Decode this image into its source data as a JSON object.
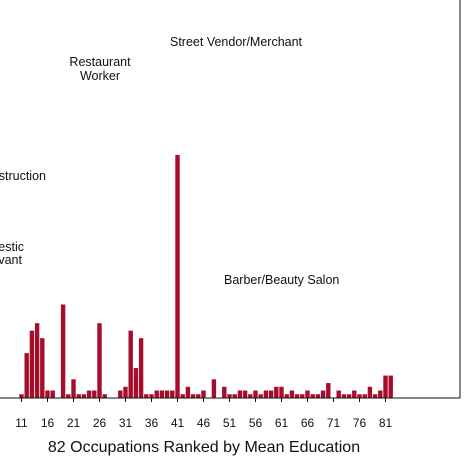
{
  "chart_data": {
    "type": "bar",
    "stacked": true,
    "title": "",
    "xlabel": "82 Occupations Ranked by Mean Education",
    "ylabel": "",
    "xticks": [
      11,
      16,
      21,
      26,
      31,
      36,
      41,
      46,
      51,
      56,
      61,
      66,
      71,
      76,
      81
    ],
    "grid": false,
    "legend": "none",
    "colors": {
      "crimson": "#a50d2a",
      "pink": "#e8638e",
      "dark": "#252326"
    },
    "x": [
      9,
      10,
      11,
      12,
      13,
      14,
      15,
      16,
      17,
      18,
      19,
      20,
      21,
      22,
      23,
      24,
      25,
      26,
      27,
      28,
      29,
      30,
      31,
      32,
      33,
      34,
      35,
      36,
      37,
      38,
      39,
      40,
      41,
      42,
      43,
      44,
      45,
      46,
      47,
      48,
      49,
      50,
      51,
      52,
      53,
      54,
      55,
      56,
      57,
      58,
      59,
      60,
      61,
      62,
      63,
      64,
      65,
      66,
      67,
      68,
      69,
      70,
      71,
      72,
      73,
      74,
      75,
      76,
      77,
      78,
      79,
      80,
      81,
      82
    ],
    "series": [
      {
        "color_key": "crimson",
        "values": [
          0,
          0,
          1,
          12,
          18,
          20,
          16,
          2,
          2,
          0,
          25,
          1,
          5,
          1,
          1,
          2,
          2,
          20,
          1,
          0,
          0,
          2,
          3,
          18,
          8,
          16,
          1,
          1,
          2,
          2,
          2,
          2,
          65,
          1,
          3,
          1,
          1,
          2,
          0,
          5,
          0,
          3,
          1,
          1,
          2,
          2,
          1,
          2,
          1,
          2,
          2,
          3,
          3,
          1,
          2,
          1,
          1,
          2,
          1,
          1,
          2,
          4,
          0,
          2,
          1,
          1,
          2,
          1,
          1,
          3,
          1,
          2,
          6,
          6
        ]
      },
      {
        "color_key": "pink",
        "values": [
          0,
          0,
          0,
          0,
          0,
          0,
          0,
          0,
          0,
          0,
          0,
          0,
          0,
          0,
          0,
          0,
          0,
          0,
          0,
          0,
          0,
          0,
          0,
          0,
          0,
          0,
          0,
          0,
          0,
          0,
          0,
          0,
          0,
          0,
          0,
          0,
          0,
          0,
          0,
          0,
          0,
          0,
          0,
          0,
          0,
          0,
          0,
          0,
          0,
          0,
          0,
          0,
          0,
          0,
          0,
          0,
          0,
          0,
          0,
          0,
          0,
          0,
          0,
          0,
          0,
          0,
          0,
          0,
          0,
          0,
          0,
          0,
          0,
          0
        ]
      },
      {
        "color_key": "dark",
        "values": [
          0,
          0,
          0,
          0,
          0,
          0,
          0,
          0,
          0,
          0,
          0,
          0,
          0,
          0,
          0,
          0,
          0,
          0,
          0,
          0,
          0,
          0,
          0,
          0,
          0,
          0,
          0,
          0,
          0,
          0,
          0,
          0,
          0,
          0,
          0,
          0,
          0,
          0,
          0,
          0,
          0,
          0,
          0,
          0,
          0,
          0,
          0,
          0,
          0,
          0,
          0,
          0,
          0,
          0,
          0,
          0,
          0,
          0,
          0,
          0,
          0,
          0,
          0,
          0,
          0,
          0,
          0,
          0,
          0,
          0,
          0,
          0,
          0,
          0
        ]
      }
    ],
    "annotations": [
      {
        "text": "Street Vendor/Merchant",
        "x": 34
      },
      {
        "text": "Restaurant",
        "x": 18
      },
      {
        "text": "Worker",
        "x": 18
      },
      {
        "text": "struction",
        "x": 12
      },
      {
        "text": "estic",
        "x": 12
      },
      {
        "text": "vant",
        "x": 12
      },
      {
        "text": "Barber/Beauty Salon",
        "x": 43
      }
    ]
  }
}
